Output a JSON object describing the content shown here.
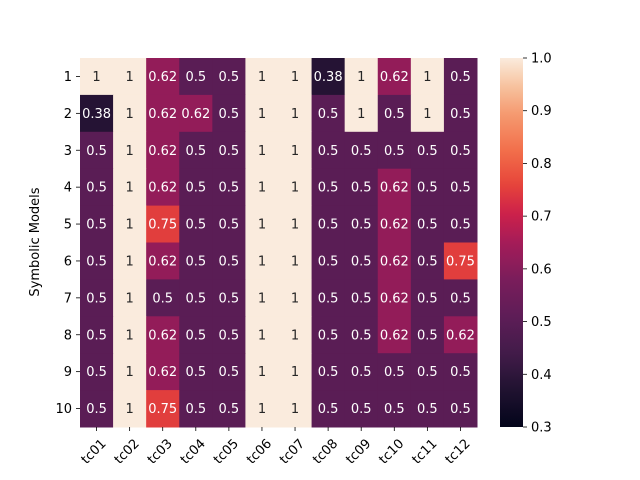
{
  "chart_data": {
    "type": "heatmap",
    "ylabel": "Symbolic Models",
    "xlabel": "",
    "title": "",
    "x_categories": [
      "tc01",
      "tc02",
      "tc03",
      "tc04",
      "tc05",
      "tc06",
      "tc07",
      "tc08",
      "tc09",
      "tc10",
      "tc11",
      "tc12"
    ],
    "y_categories": [
      "1",
      "2",
      "3",
      "4",
      "5",
      "6",
      "7",
      "8",
      "9",
      "10"
    ],
    "values": [
      [
        1,
        1,
        0.62,
        0.5,
        0.5,
        1,
        1,
        0.38,
        1,
        0.62,
        1,
        0.5
      ],
      [
        0.38,
        1,
        0.62,
        0.62,
        0.5,
        1,
        1,
        0.5,
        1,
        0.5,
        1,
        0.5
      ],
      [
        0.5,
        1,
        0.62,
        0.5,
        0.5,
        1,
        1,
        0.5,
        0.5,
        0.5,
        0.5,
        0.5
      ],
      [
        0.5,
        1,
        0.62,
        0.5,
        0.5,
        1,
        1,
        0.5,
        0.5,
        0.62,
        0.5,
        0.5
      ],
      [
        0.5,
        1,
        0.75,
        0.5,
        0.5,
        1,
        1,
        0.5,
        0.5,
        0.62,
        0.5,
        0.5
      ],
      [
        0.5,
        1,
        0.62,
        0.5,
        0.5,
        1,
        1,
        0.5,
        0.5,
        0.62,
        0.5,
        0.75
      ],
      [
        0.5,
        1,
        0.5,
        0.5,
        0.5,
        1,
        1,
        0.5,
        0.5,
        0.62,
        0.5,
        0.5
      ],
      [
        0.5,
        1,
        0.62,
        0.5,
        0.5,
        1,
        1,
        0.5,
        0.5,
        0.62,
        0.5,
        0.62
      ],
      [
        0.5,
        1,
        0.62,
        0.5,
        0.5,
        1,
        1,
        0.5,
        0.5,
        0.5,
        0.5,
        0.5
      ],
      [
        0.5,
        1,
        0.75,
        0.5,
        0.5,
        1,
        1,
        0.5,
        0.5,
        0.5,
        0.5,
        0.5
      ]
    ],
    "colorbar": {
      "range": [
        0.3,
        1.0
      ],
      "ticks": [
        "0.3",
        "0.4",
        "0.5",
        "0.6",
        "0.7",
        "0.8",
        "0.9",
        "1.0"
      ],
      "colormap": "rocket",
      "low_color": "#03051a",
      "high_color": "#faebdd"
    },
    "grid": false,
    "annotations": true
  }
}
